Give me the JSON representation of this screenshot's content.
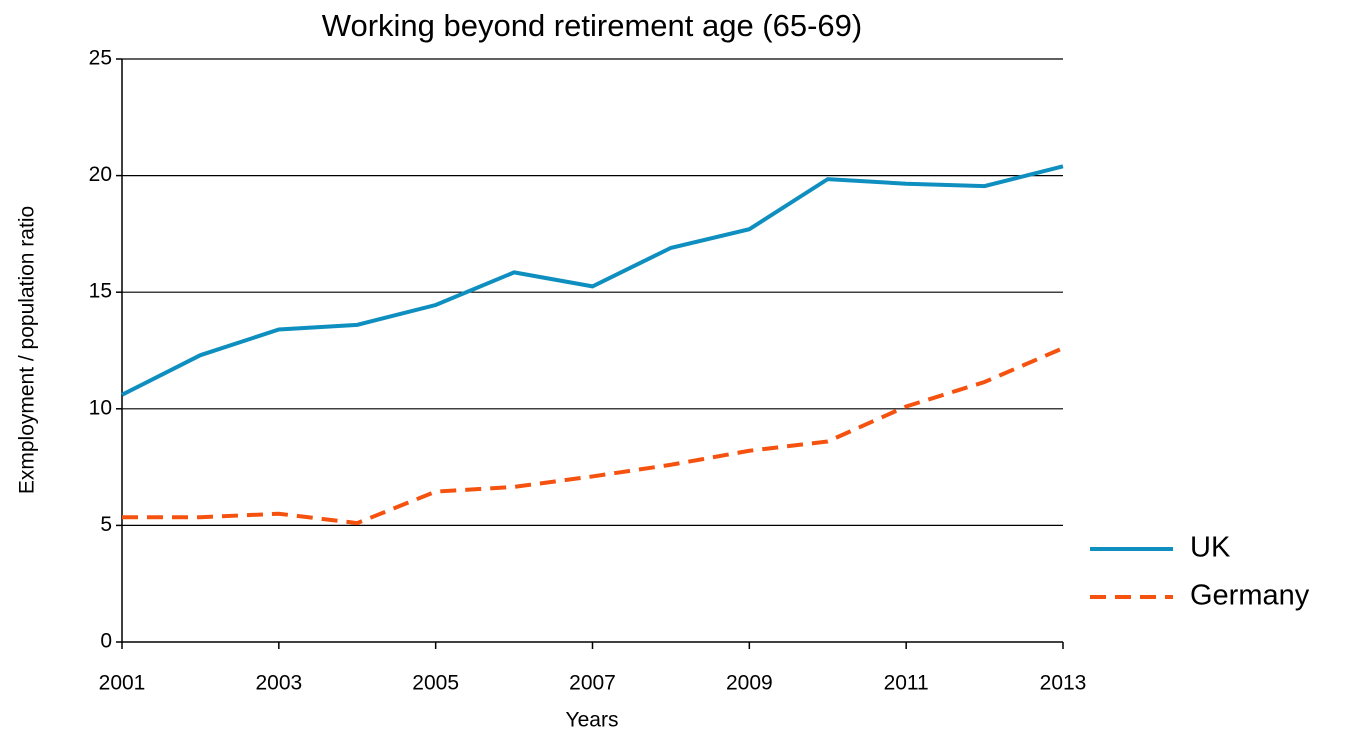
{
  "chart_data": {
    "type": "line",
    "title": "Working beyond retirement age (65-69)",
    "x_label": "Years",
    "y_label": "Exmployment / population ratio",
    "x": [
      2001,
      2002,
      2003,
      2004,
      2005,
      2006,
      2007,
      2008,
      2009,
      2010,
      2011,
      2012,
      2013
    ],
    "series": [
      {
        "name": "UK",
        "color": "#0f8fbf",
        "dash": "solid",
        "values": [
          10.6,
          12.3,
          13.4,
          13.6,
          14.45,
          15.85,
          15.25,
          16.9,
          17.7,
          19.85,
          19.65,
          19.55,
          20.4
        ]
      },
      {
        "name": "Germany",
        "color": "#f5520f",
        "dash": "dashed",
        "values": [
          5.35,
          5.35,
          5.5,
          5.1,
          6.45,
          6.65,
          7.1,
          7.6,
          8.2,
          8.6,
          10.1,
          11.15,
          12.6
        ]
      }
    ],
    "xlim": [
      2001,
      2013
    ],
    "xticks": [
      2001,
      2003,
      2005,
      2007,
      2009,
      2011,
      2013
    ],
    "ylim": [
      0,
      25
    ],
    "yticks": [
      0,
      5,
      10,
      15,
      20,
      25
    ],
    "grid": true,
    "legend": "lower right"
  }
}
